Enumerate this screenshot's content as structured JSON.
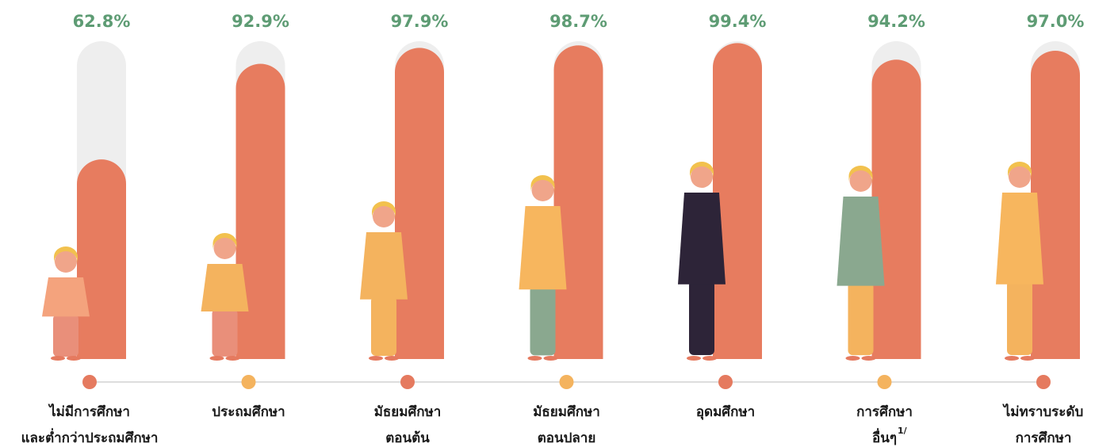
{
  "chart_data": {
    "type": "bar",
    "categories": [
      [
        "ไม่มีการศึกษา",
        "และต่ำกว่าประถมศึกษา"
      ],
      [
        "ประถมศึกษา"
      ],
      [
        "มัธยมศึกษา",
        "ตอนต้น"
      ],
      [
        "มัธยมศึกษา",
        "ตอนปลาย"
      ],
      [
        "อุดมศึกษา"
      ],
      [
        "การศึกษา",
        "อื่นๆ"
      ],
      [
        "ไม่ทราบระดับ",
        "การศึกษา"
      ]
    ],
    "category_notes": [
      null,
      null,
      null,
      null,
      null,
      "1/",
      null
    ],
    "values": [
      62.8,
      92.9,
      97.9,
      98.7,
      99.4,
      94.2,
      97.0
    ],
    "value_labels": [
      "62.8%",
      "92.9%",
      "97.9%",
      "98.7%",
      "99.4%",
      "94.2%",
      "97.0%"
    ],
    "color": "#e77c5f",
    "track_color": "#eeeeee",
    "dot_colors": [
      "#e57a5f",
      "#f4b35e",
      "#e57a5f",
      "#f4b35e",
      "#e57a5f",
      "#f4b35e",
      "#e57a5f"
    ],
    "ylim": [
      0,
      100
    ]
  }
}
